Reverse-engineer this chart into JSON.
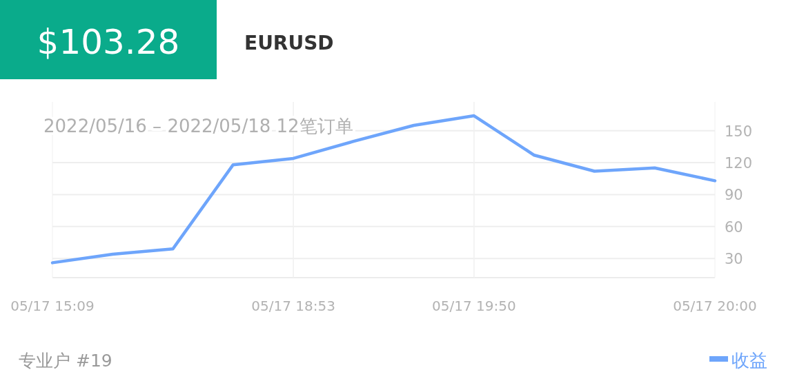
{
  "chart_data": {
    "type": "line",
    "title": "$103.28",
    "subtitle": "EURUSD",
    "annotations": [
      "2022/05/16 – 2022/05/18  12笔订单",
      "专业户 #19"
    ],
    "categories": [
      "05/17 15:09",
      null,
      null,
      null,
      "05/17 18:53",
      null,
      null,
      "05/17 19:50",
      null,
      null,
      null,
      "05/17 20:00"
    ],
    "series": [
      {
        "name": "收益",
        "color": "#6ea5fb",
        "values": [
          26,
          34,
          39,
          118,
          124,
          140,
          155,
          164,
          127,
          112,
          115,
          103
        ]
      }
    ],
    "ylim": [
      12,
      177
    ],
    "yticks": [
      30,
      60,
      90,
      120,
      150
    ],
    "grid": true,
    "legend": "bottom right"
  }
}
